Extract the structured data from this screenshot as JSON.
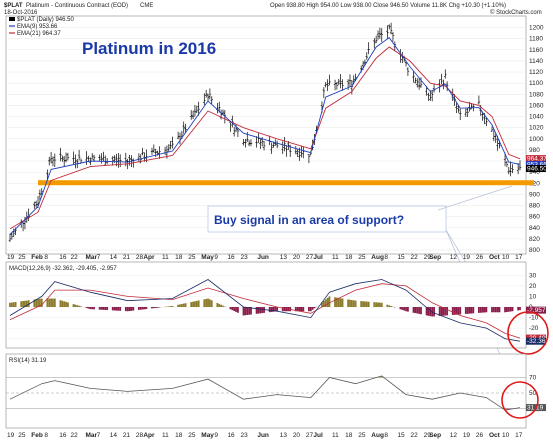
{
  "header": {
    "symbol": "$PLAT",
    "desc": "Platinum - Continuous Contract (EOD)",
    "exchange": "CME",
    "date": "18-Oct-2016",
    "ohlc": "Open 938.80  High 954.00  Low 938.00  Close 946.50  Volume 11.8K  Chg +10.30 (+1.10%)",
    "attribution": "© StockCharts.com"
  },
  "price_legend": {
    "main": "$PLAT (Daily) 946.50",
    "ema9": "EMA(9) 953.66",
    "ema21": "EMA(21) 964.37"
  },
  "macd_legend": "MACD(12,26,9) -32.362, -29.405, -2.957",
  "rsi_legend": "RSI(14) 31.19",
  "annotations": {
    "title": "Platinum in 2016",
    "callout": "Buy signal in an area of support?"
  },
  "colors": {
    "price_bar": "#000000",
    "ema9": "#1f3fbf",
    "ema21": "#c22a3a",
    "support": "#f39a00",
    "callout_text": "#1a3aa8",
    "hist_pos": "#8c7b2a",
    "hist_neg": "#8a1d4a",
    "circle": "#e01a1a",
    "last_price_tag": "#c22a3a"
  },
  "price_axis": {
    "ticks": [
      "1200",
      "1180",
      "1160",
      "1140",
      "1120",
      "1100",
      "1080",
      "1060",
      "1040",
      "1020",
      "1000",
      "980",
      "960",
      "940",
      "920",
      "900",
      "880",
      "860",
      "840",
      "820",
      "800"
    ],
    "last_tags": [
      "964.37",
      "953.66",
      "946.50"
    ]
  },
  "macd_axis": {
    "ticks": [
      "30",
      "20",
      "10",
      "0",
      "-10",
      "-20",
      "-30"
    ],
    "last_tags": [
      "-2.957",
      "-29.405",
      "-32.362"
    ]
  },
  "rsi_axis": {
    "ticks": [
      "70",
      "50",
      "30"
    ],
    "last_tag": "31.19"
  },
  "x_axis": {
    "labels": [
      "19",
      "25",
      "Feb",
      "8",
      "16",
      "22",
      "Mar",
      "7",
      "14",
      "21",
      "28",
      "Apr",
      "11",
      "18",
      "25",
      "May",
      "9",
      "16",
      "23",
      "Jun",
      "13",
      "20",
      "27",
      "Jul",
      "11",
      "18",
      "25",
      "Aug",
      "8",
      "15",
      "22",
      "29",
      "Sep",
      "12",
      "19",
      "26",
      "Oct",
      "10",
      "17"
    ]
  },
  "chart_data": {
    "type": "line",
    "x_range": [
      "2016-01-19",
      "2016-10-18"
    ],
    "ylim": [
      800,
      1210
    ],
    "scale": "linear",
    "series": [
      {
        "name": "$PLAT",
        "x": [
          "2016-01-19",
          "2016-02-03",
          "2016-02-10",
          "2016-03-02",
          "2016-03-22",
          "2016-04-15",
          "2016-05-04",
          "2016-05-23",
          "2016-06-10",
          "2016-06-28",
          "2016-07-06",
          "2016-07-20",
          "2016-08-02",
          "2016-08-09",
          "2016-08-20",
          "2016-08-31",
          "2016-09-08",
          "2016-09-16",
          "2016-09-26",
          "2016-10-03",
          "2016-10-12",
          "2016-10-18"
        ],
        "values": [
          820,
          888,
          965,
          965,
          960,
          985,
          1080,
          1000,
          988,
          972,
          1095,
          1100,
          1180,
          1195,
          1120,
          1075,
          1110,
          1040,
          1060,
          1015,
          946,
          946
        ]
      },
      {
        "name": "EMA(9)",
        "x": [
          "2016-01-19",
          "2016-02-03",
          "2016-02-10",
          "2016-03-02",
          "2016-03-22",
          "2016-04-15",
          "2016-05-04",
          "2016-05-23",
          "2016-06-10",
          "2016-06-28",
          "2016-07-06",
          "2016-07-20",
          "2016-08-02",
          "2016-08-09",
          "2016-08-20",
          "2016-08-31",
          "2016-09-08",
          "2016-09-16",
          "2016-09-26",
          "2016-10-03",
          "2016-10-12",
          "2016-10-18"
        ],
        "values": [
          828,
          878,
          945,
          960,
          958,
          978,
          1068,
          1010,
          992,
          975,
          1075,
          1095,
          1165,
          1182,
          1130,
          1085,
          1098,
          1055,
          1056,
          1025,
          958,
          954
        ]
      },
      {
        "name": "EMA(21)",
        "x": [
          "2016-01-19",
          "2016-02-03",
          "2016-02-10",
          "2016-03-02",
          "2016-03-22",
          "2016-04-15",
          "2016-05-04",
          "2016-05-23",
          "2016-06-10",
          "2016-06-28",
          "2016-07-06",
          "2016-07-20",
          "2016-08-02",
          "2016-08-09",
          "2016-08-20",
          "2016-08-31",
          "2016-09-08",
          "2016-09-16",
          "2016-09-26",
          "2016-10-03",
          "2016-10-12",
          "2016-10-18"
        ],
        "values": [
          838,
          868,
          925,
          950,
          955,
          970,
          1050,
          1020,
          1000,
          982,
          1055,
          1085,
          1145,
          1165,
          1140,
          1100,
          1095,
          1068,
          1060,
          1040,
          972,
          964
        ]
      }
    ],
    "support_level": 921,
    "macd": {
      "x": [
        "2016-01-19",
        "2016-02-05",
        "2016-02-12",
        "2016-03-02",
        "2016-03-22",
        "2016-04-15",
        "2016-05-04",
        "2016-05-23",
        "2016-06-10",
        "2016-06-28",
        "2016-07-08",
        "2016-07-22",
        "2016-08-05",
        "2016-08-18",
        "2016-09-01",
        "2016-09-16",
        "2016-09-30",
        "2016-10-10",
        "2016-10-18"
      ],
      "macd": [
        -8,
        10,
        24,
        14,
        6,
        8,
        26,
        0,
        -4,
        -10,
        14,
        22,
        26,
        16,
        -5,
        -15,
        -20,
        -30,
        -32.362
      ],
      "signal": [
        -12,
        2,
        16,
        16,
        10,
        7,
        18,
        8,
        0,
        -6,
        4,
        16,
        22,
        20,
        4,
        -8,
        -15,
        -25,
        -29.405
      ],
      "histogram": [
        4,
        8,
        8,
        -2,
        -4,
        1,
        8,
        -8,
        -4,
        -4,
        10,
        6,
        4,
        -4,
        -9,
        -7,
        -5,
        -5,
        -2.957
      ]
    },
    "rsi": {
      "x": [
        "2016-01-19",
        "2016-02-05",
        "2016-02-12",
        "2016-03-02",
        "2016-03-22",
        "2016-04-15",
        "2016-05-04",
        "2016-05-23",
        "2016-06-10",
        "2016-06-28",
        "2016-07-08",
        "2016-07-22",
        "2016-08-05",
        "2016-08-18",
        "2016-09-01",
        "2016-09-16",
        "2016-09-30",
        "2016-10-10",
        "2016-10-18"
      ],
      "values": [
        42,
        62,
        66,
        56,
        52,
        56,
        68,
        42,
        48,
        44,
        70,
        62,
        72,
        48,
        42,
        50,
        44,
        28,
        31.19
      ],
      "levels": [
        70,
        50,
        30
      ]
    }
  }
}
